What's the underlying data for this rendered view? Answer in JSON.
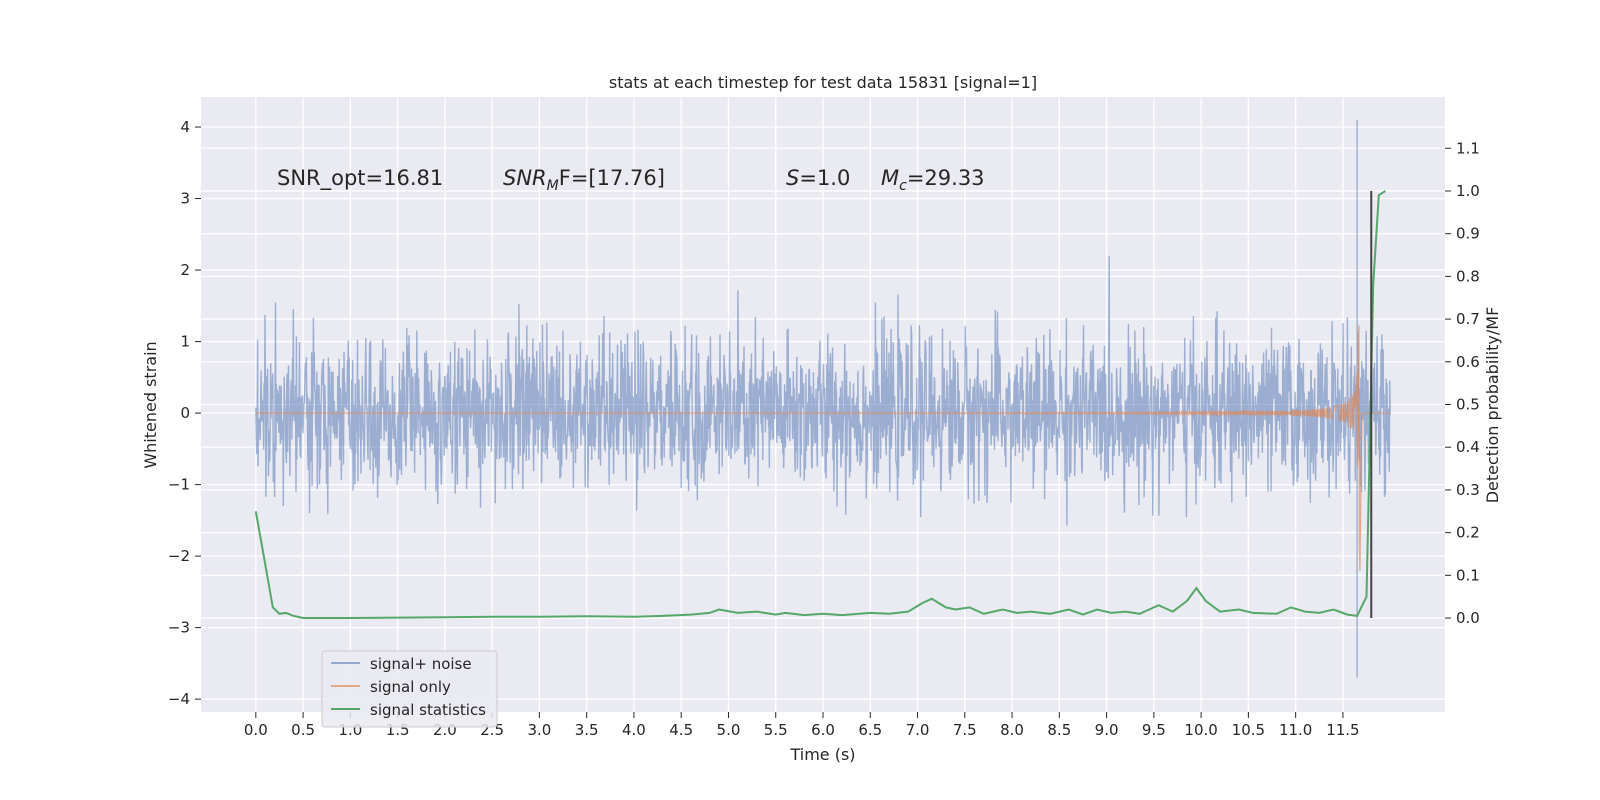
{
  "chart_data": {
    "type": "line",
    "title": "stats at each timestep for test data 15831 [signal=1]",
    "xlabel": "Time (s)",
    "ylabel": "Whitened strain",
    "ylabel_right": "Detection probability/MF",
    "xlim": [
      -0.58,
      12.58
    ],
    "ylim": [
      -4.18,
      4.42
    ],
    "ylim_right": [
      -0.22,
      1.22
    ],
    "xticks": [
      "0.0",
      "0.5",
      "1.0",
      "1.5",
      "2.0",
      "2.5",
      "3.0",
      "3.5",
      "4.0",
      "4.5",
      "5.0",
      "5.5",
      "6.0",
      "6.5",
      "7.0",
      "7.5",
      "8.0",
      "8.5",
      "9.0",
      "9.5",
      "10.0",
      "10.5",
      "11.0",
      "11.5"
    ],
    "yticks": [
      "4",
      "3",
      "2",
      "1",
      "0",
      "−1",
      "−2",
      "−3",
      "−4"
    ],
    "yticks_right": [
      "1.1",
      "1.0",
      "0.9",
      "0.8",
      "0.7",
      "0.6",
      "0.5",
      "0.4",
      "0.3",
      "0.2",
      "0.1",
      "0.0"
    ],
    "grid": true,
    "legend_placement": "lower-left",
    "annotations": {
      "snr_opt": "SNR_opt=16.81",
      "snr_mf": "SNR",
      "snr_mf_sub": "M",
      "snr_mf_tail": "F=[17.76]",
      "s_var": "S",
      "s_val": "=1.0",
      "mc_var": "M",
      "mc_sub": "c",
      "mc_val": "=29.33"
    },
    "series": [
      {
        "name": "signal+ noise",
        "color": "#4c72b0",
        "note_visible": "dense noise band, approx ±1.3 with spikes to ±2.2, large spike near t≈11.65 reaching 4.1 / −3.7",
        "band": {
          "x_start": 0.0,
          "x_end": 12.0,
          "typical_amp": 1.25,
          "max_amp": 2.2
        },
        "spikes": [
          [
            11.65,
            4.1
          ],
          [
            11.65,
            -3.7
          ]
        ]
      },
      {
        "name": "signal only",
        "color": "#dd8452",
        "chirp": {
          "x_start": 0.0,
          "x_end": 11.68,
          "peak": 2.3,
          "merger_time": 11.68
        }
      },
      {
        "name": "signal statistics",
        "color": "#55a868",
        "x": [
          0.0,
          0.12,
          0.18,
          0.25,
          0.32,
          0.4,
          0.5,
          0.8,
          1.0,
          1.5,
          2.0,
          2.5,
          3.0,
          3.5,
          4.0,
          4.3,
          4.6,
          4.8,
          4.9,
          5.1,
          5.3,
          5.5,
          5.6,
          5.8,
          6.0,
          6.2,
          6.5,
          6.7,
          6.9,
          7.05,
          7.15,
          7.3,
          7.4,
          7.55,
          7.7,
          7.9,
          8.05,
          8.2,
          8.4,
          8.6,
          8.75,
          8.9,
          9.05,
          9.2,
          9.35,
          9.55,
          9.7,
          9.85,
          9.95,
          10.05,
          10.2,
          10.4,
          10.55,
          10.8,
          10.95,
          11.1,
          11.25,
          11.4,
          11.55,
          11.65,
          11.75,
          11.82,
          11.88,
          11.95
        ],
        "values": [
          0.25,
          0.1,
          0.025,
          0.01,
          0.012,
          0.005,
          0.0,
          0.0,
          0.0,
          0.001,
          0.002,
          0.003,
          0.003,
          0.004,
          0.003,
          0.005,
          0.008,
          0.012,
          0.02,
          0.012,
          0.015,
          0.008,
          0.012,
          0.007,
          0.01,
          0.007,
          0.012,
          0.01,
          0.015,
          0.035,
          0.045,
          0.025,
          0.02,
          0.025,
          0.01,
          0.02,
          0.012,
          0.015,
          0.01,
          0.02,
          0.008,
          0.02,
          0.012,
          0.015,
          0.01,
          0.03,
          0.015,
          0.04,
          0.07,
          0.04,
          0.015,
          0.02,
          0.012,
          0.01,
          0.025,
          0.015,
          0.012,
          0.02,
          0.008,
          0.005,
          0.05,
          0.78,
          0.99,
          1.0
        ]
      }
    ],
    "vertical_line": {
      "x": 11.8,
      "y_right_range": [
        0.0,
        1.0
      ],
      "color": "#444444"
    }
  }
}
